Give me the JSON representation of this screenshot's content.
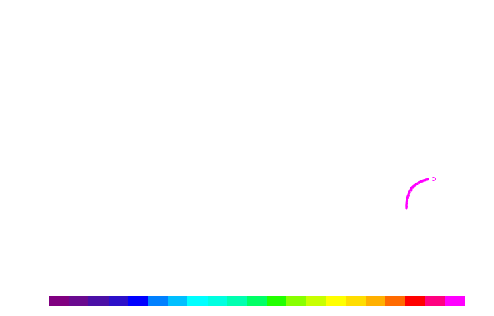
{
  "canvas": {
    "background": "#ffffff",
    "stroke_color": "#ff00ff",
    "cursor_icon": "circle-brush-cursor-icon"
  },
  "palette": {
    "swatches": [
      {
        "name": "purple",
        "color": "#800080"
      },
      {
        "name": "dark-purple",
        "color": "#6a0a8f"
      },
      {
        "name": "indigo",
        "color": "#4b0fa6"
      },
      {
        "name": "violet-blue",
        "color": "#2c10c9"
      },
      {
        "name": "blue",
        "color": "#0000ff"
      },
      {
        "name": "azure",
        "color": "#0080ff"
      },
      {
        "name": "deep-sky",
        "color": "#00bfff"
      },
      {
        "name": "cyan",
        "color": "#00ffff"
      },
      {
        "name": "aqua",
        "color": "#00ffe0"
      },
      {
        "name": "aquamarine",
        "color": "#00ffb0"
      },
      {
        "name": "spring-green",
        "color": "#00ff66"
      },
      {
        "name": "green",
        "color": "#22ff00"
      },
      {
        "name": "chartreuse",
        "color": "#88ff00"
      },
      {
        "name": "lime-yellow",
        "color": "#c8ff00"
      },
      {
        "name": "yellow",
        "color": "#ffff00"
      },
      {
        "name": "gold",
        "color": "#ffdd00"
      },
      {
        "name": "amber",
        "color": "#ffb000"
      },
      {
        "name": "orange",
        "color": "#ff6a00"
      },
      {
        "name": "red",
        "color": "#ff0000"
      },
      {
        "name": "rose",
        "color": "#ff0080"
      },
      {
        "name": "magenta",
        "color": "#ff00ff"
      }
    ]
  }
}
